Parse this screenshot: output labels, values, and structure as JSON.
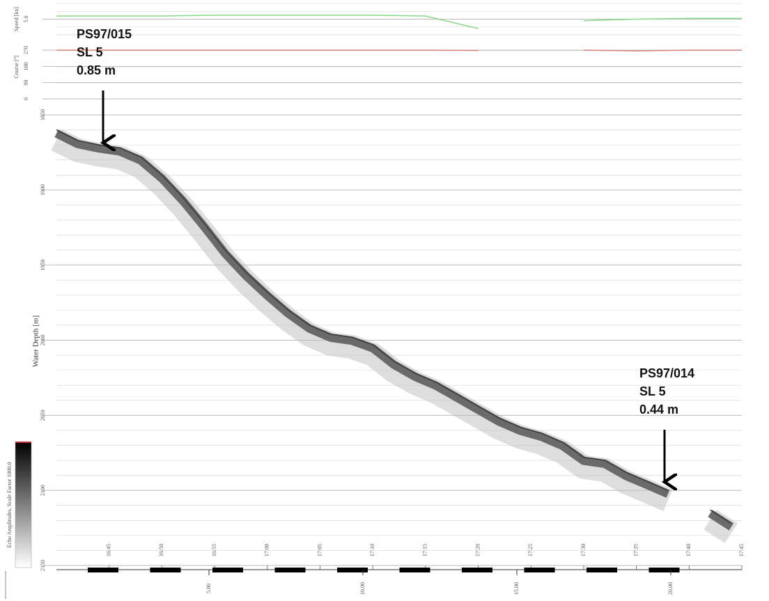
{
  "chart_data": [
    {
      "type": "line",
      "y_label": "Speed [kn]",
      "x": [
        "16:40",
        "16:45",
        "16:50",
        "16:55",
        "17:00",
        "17:05",
        "17:10",
        "17:15",
        "17:20",
        "17:25",
        "17:30",
        "17:35",
        "17:40",
        "17:45"
      ],
      "series": [
        {
          "color": "#86d986",
          "values": [
            5.2,
            5.2,
            5.2,
            5.25,
            5.25,
            5.25,
            5.25,
            5.2,
            4.4,
            null,
            4.9,
            5.0,
            5.05,
            5.05
          ]
        }
      ],
      "ylim": [
        4,
        6
      ],
      "yticks": [
        {
          "value": 5,
          "label": "5.0"
        }
      ]
    },
    {
      "type": "line",
      "y_label": "Course [°]",
      "x": [
        "16:40",
        "16:45",
        "16:50",
        "16:55",
        "17:00",
        "17:05",
        "17:10",
        "17:15",
        "17:20",
        "17:25",
        "17:30",
        "17:35",
        "17:40",
        "17:45"
      ],
      "series": [
        {
          "color": "#e08080",
          "values": [
            270,
            270,
            270,
            270,
            270,
            270,
            270,
            270,
            268,
            null,
            270,
            266,
            270,
            270
          ]
        }
      ],
      "ylim": [
        0,
        355
      ],
      "yticks": [
        0,
        90,
        180,
        270
      ]
    },
    {
      "type": "echogram",
      "y_label": "Water Depth [m]",
      "x": [
        "16:40",
        "16:42",
        "16:44",
        "16:46",
        "16:48",
        "16:50",
        "16:52",
        "16:54",
        "16:56",
        "16:58",
        "17:00",
        "17:02",
        "17:04",
        "17:06",
        "17:08",
        "17:10",
        "17:12",
        "17:14",
        "17:16",
        "17:18",
        "17:20",
        "17:22",
        "17:24",
        "17:26",
        "17:28",
        "17:30",
        "17:32",
        "17:34",
        "17:36",
        "17:38",
        "17:40",
        "17:42",
        "17:44"
      ],
      "series": [
        {
          "color": "#3a3a3a",
          "values": [
            1860,
            1867,
            1870,
            1872,
            1878,
            1890,
            1905,
            1922,
            1940,
            1955,
            1968,
            1980,
            1990,
            1996,
            1998,
            2003,
            2014,
            2022,
            2028,
            2036,
            2044,
            2052,
            2058,
            2062,
            2068,
            2078,
            2080,
            2088,
            2094,
            2100,
            null,
            2113,
            2122
          ]
        }
      ],
      "xlim": [
        "16:40",
        "17:45"
      ],
      "xticks": [
        "16:45",
        "16:50",
        "16:55",
        "17:00",
        "17:05",
        "17:10",
        "17:15",
        "17:20",
        "17:25",
        "17:30",
        "17:35",
        "17:40",
        "17:45"
      ],
      "ylim": [
        1850,
        2150
      ],
      "inverted": true,
      "yticks": [
        1850,
        1900,
        1950,
        2000,
        2050,
        2100,
        2150
      ],
      "distance_ticks": [
        {
          "value": 5,
          "label": "5.00"
        },
        {
          "value": 10,
          "label": "10.00"
        },
        {
          "value": 15,
          "label": "15.00"
        },
        {
          "value": 20,
          "label": "20.00"
        }
      ],
      "annotations": [
        {
          "lines": [
            "PS97/015",
            "SL 5",
            "0.85 m"
          ]
        },
        {
          "lines": [
            "PS97/014",
            "SL 5",
            "0.44 m"
          ]
        }
      ],
      "colorbar_label": "Echo Amplitudes, Scale Factor 1000.0"
    }
  ]
}
